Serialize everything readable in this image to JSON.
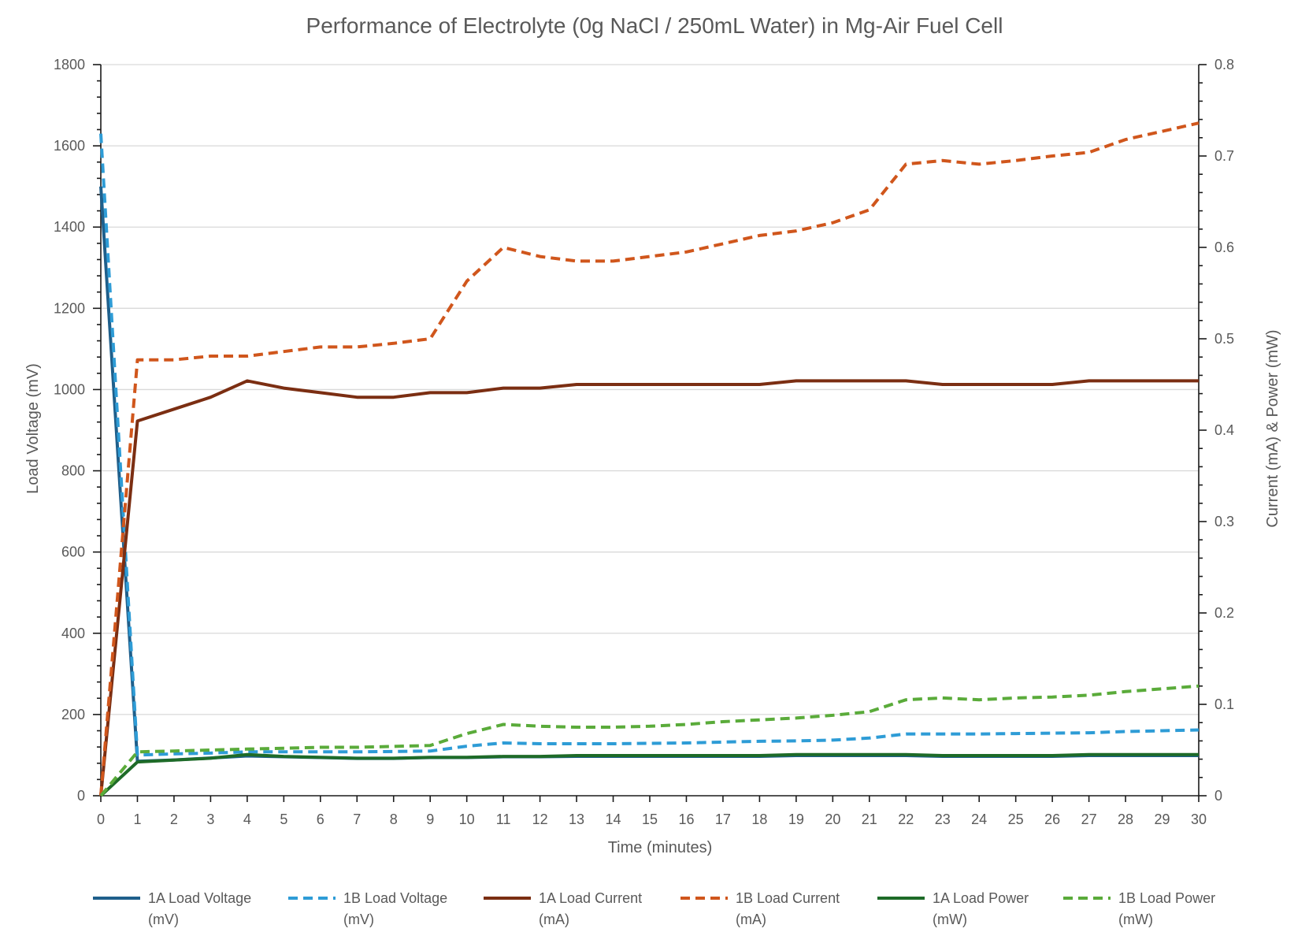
{
  "chart_data": {
    "type": "line",
    "title": "Performance of Electrolyte (0g NaCl / 250mL Water) in Mg-Air Fuel Cell",
    "xlabel": "Time (minutes)",
    "ylabel_left": "Load Voltage (mV)",
    "ylabel_right": "Current (mA) & Power (mW)",
    "x": [
      0,
      1,
      2,
      3,
      4,
      5,
      6,
      7,
      8,
      9,
      10,
      11,
      12,
      13,
      14,
      15,
      16,
      17,
      18,
      19,
      20,
      21,
      22,
      23,
      24,
      25,
      26,
      27,
      28,
      29,
      30
    ],
    "xlim": [
      0,
      30
    ],
    "ylim_left": [
      0,
      1800
    ],
    "ylim_right": [
      0,
      0.8
    ],
    "yticks_left": [
      "0",
      "200",
      "400",
      "600",
      "800",
      "1000",
      "1200",
      "1400",
      "1600",
      "1800"
    ],
    "yticks_right": [
      "0",
      "0.1",
      "0.2",
      "0.3",
      "0.4",
      "0.5",
      "0.6",
      "0.7",
      "0.8"
    ],
    "grid": true,
    "legend_position": "bottom",
    "series": [
      {
        "name": "1A Load Voltage (mV)",
        "legend_line1": "1A Load Voltage",
        "legend_line2": "(mV)",
        "axis": "left",
        "color": "#1f5f8b",
        "dashed": false,
        "values": [
          1500,
          85,
          88,
          93,
          98,
          96,
          94,
          92,
          92,
          94,
          94,
          96,
          96,
          97,
          97,
          97,
          97,
          97,
          97,
          99,
          99,
          99,
          99,
          97,
          97,
          97,
          97,
          99,
          99,
          99,
          99
        ]
      },
      {
        "name": "1B Load Voltage (mV)",
        "legend_line1": "1B Load Voltage",
        "legend_line2": "(mV)",
        "axis": "left",
        "color": "#2e9cd6",
        "dashed": true,
        "values": [
          1630,
          100,
          103,
          105,
          108,
          108,
          108,
          108,
          109,
          110,
          122,
          130,
          128,
          128,
          128,
          129,
          130,
          132,
          134,
          135,
          137,
          142,
          152,
          152,
          152,
          153,
          154,
          155,
          158,
          160,
          162
        ]
      },
      {
        "name": "1A Load Current (mA)",
        "legend_line1": "1A Load Current",
        "legend_line2": "(mA)",
        "axis": "right",
        "color": "#7b2e12",
        "dashed": false,
        "values": [
          0,
          0.41,
          0.423,
          0.436,
          0.454,
          0.446,
          0.441,
          0.436,
          0.436,
          0.441,
          0.441,
          0.446,
          0.446,
          0.45,
          0.45,
          0.45,
          0.45,
          0.45,
          0.45,
          0.454,
          0.454,
          0.454,
          0.454,
          0.45,
          0.45,
          0.45,
          0.45,
          0.454,
          0.454,
          0.454,
          0.454
        ]
      },
      {
        "name": "1B Load Current (mA)",
        "legend_line1": "1B Load Current",
        "legend_line2": "(mA)",
        "axis": "right",
        "color": "#d0561c",
        "dashed": true,
        "values": [
          0,
          0.477,
          0.477,
          0.481,
          0.481,
          0.486,
          0.491,
          0.491,
          0.495,
          0.5,
          0.563,
          0.6,
          0.59,
          0.585,
          0.585,
          0.59,
          0.595,
          0.604,
          0.613,
          0.618,
          0.627,
          0.641,
          0.691,
          0.695,
          0.691,
          0.695,
          0.7,
          0.704,
          0.718,
          0.727,
          0.736
        ]
      },
      {
        "name": "1A Load Power (mW)",
        "legend_line1": "1A Load Power",
        "legend_line2": "(mW)",
        "axis": "right",
        "color": "#1e6b28",
        "dashed": false,
        "values": [
          0,
          0.037,
          0.039,
          0.041,
          0.045,
          0.043,
          0.042,
          0.041,
          0.041,
          0.042,
          0.042,
          0.043,
          0.043,
          0.044,
          0.044,
          0.044,
          0.044,
          0.044,
          0.044,
          0.045,
          0.045,
          0.045,
          0.045,
          0.044,
          0.044,
          0.044,
          0.044,
          0.045,
          0.045,
          0.045,
          0.045
        ]
      },
      {
        "name": "1B Load Power (mW)",
        "legend_line1": "1B Load Power",
        "legend_line2": "(mW)",
        "axis": "right",
        "color": "#5aab3a",
        "dashed": true,
        "values": [
          0,
          0.048,
          0.049,
          0.05,
          0.051,
          0.052,
          0.053,
          0.053,
          0.054,
          0.055,
          0.068,
          0.078,
          0.076,
          0.075,
          0.075,
          0.076,
          0.078,
          0.081,
          0.083,
          0.085,
          0.088,
          0.092,
          0.105,
          0.107,
          0.105,
          0.107,
          0.108,
          0.11,
          0.114,
          0.117,
          0.12
        ]
      }
    ]
  }
}
